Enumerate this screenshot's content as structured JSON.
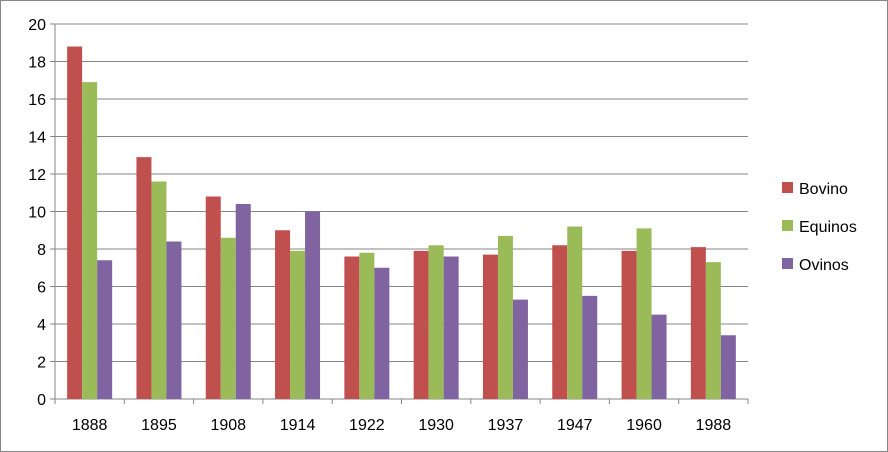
{
  "chart_data": {
    "type": "bar",
    "title": "",
    "xlabel": "",
    "ylabel": "",
    "categories": [
      "1888",
      "1895",
      "1908",
      "1914",
      "1922",
      "1930",
      "1937",
      "1947",
      "1960",
      "1988"
    ],
    "series": [
      {
        "name": "Bovino",
        "color": "#c0504d",
        "values": [
          18.8,
          12.9,
          10.8,
          9.0,
          7.6,
          7.9,
          7.7,
          8.2,
          7.9,
          8.1
        ]
      },
      {
        "name": "Equinos",
        "color": "#9bbb59",
        "values": [
          16.9,
          11.6,
          8.6,
          7.9,
          7.8,
          8.2,
          8.7,
          9.2,
          9.1,
          7.3
        ]
      },
      {
        "name": "Ovinos",
        "color": "#8064a2",
        "values": [
          7.4,
          8.4,
          10.4,
          10.0,
          7.0,
          7.6,
          5.3,
          5.5,
          4.5,
          3.4
        ]
      }
    ],
    "ylim": [
      0,
      20
    ],
    "yticks": [
      0,
      2,
      4,
      6,
      8,
      10,
      12,
      14,
      16,
      18,
      20
    ],
    "grid": true,
    "legend_position": "right"
  }
}
